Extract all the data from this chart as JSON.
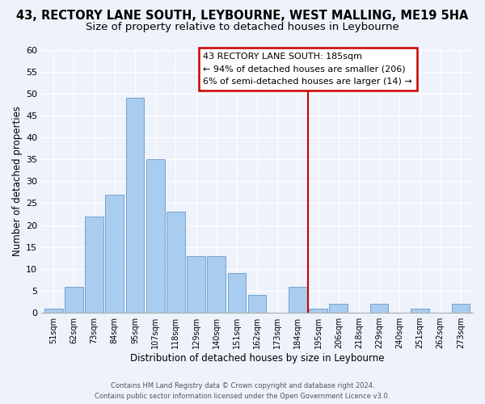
{
  "title": "43, RECTORY LANE SOUTH, LEYBOURNE, WEST MALLING, ME19 5HA",
  "subtitle": "Size of property relative to detached houses in Leybourne",
  "xlabel": "Distribution of detached houses by size in Leybourne",
  "ylabel": "Number of detached properties",
  "bar_labels": [
    "51sqm",
    "62sqm",
    "73sqm",
    "84sqm",
    "95sqm",
    "107sqm",
    "118sqm",
    "129sqm",
    "140sqm",
    "151sqm",
    "162sqm",
    "173sqm",
    "184sqm",
    "195sqm",
    "206sqm",
    "218sqm",
    "229sqm",
    "240sqm",
    "251sqm",
    "262sqm",
    "273sqm"
  ],
  "bar_values": [
    1,
    6,
    22,
    27,
    49,
    35,
    23,
    13,
    13,
    9,
    4,
    0,
    6,
    1,
    2,
    0,
    2,
    0,
    1,
    0,
    2
  ],
  "bar_color": "#aaccee",
  "bar_edge_color": "#6699cc",
  "vline_color": "#cc0000",
  "vline_x_index": 12,
  "ylim": [
    0,
    60
  ],
  "yticks": [
    0,
    5,
    10,
    15,
    20,
    25,
    30,
    35,
    40,
    45,
    50,
    55,
    60
  ],
  "annotation_title": "43 RECTORY LANE SOUTH: 185sqm",
  "annotation_line1": "← 94% of detached houses are smaller (206)",
  "annotation_line2": "6% of semi-detached houses are larger (14) →",
  "annotation_box_color": "#ffffff",
  "annotation_box_edge": "#cc0000",
  "footer1": "Contains HM Land Registry data © Crown copyright and database right 2024.",
  "footer2": "Contains public sector information licensed under the Open Government Licence v3.0.",
  "title_fontsize": 10.5,
  "subtitle_fontsize": 9.5,
  "background_color": "#eef2fb",
  "grid_color": "#ffffff"
}
